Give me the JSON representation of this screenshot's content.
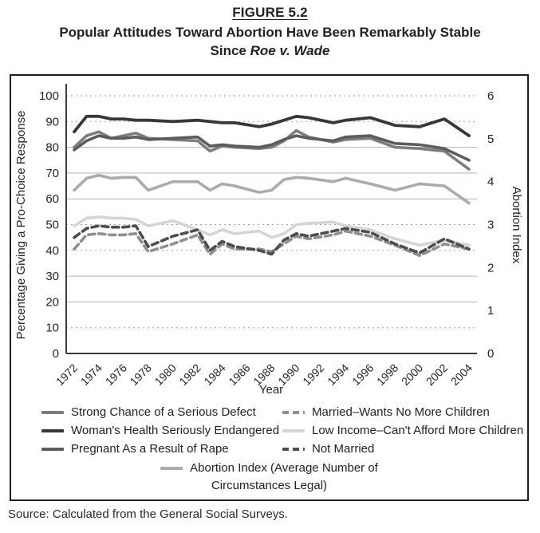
{
  "figure": {
    "label": "FIGURE 5.2",
    "title_line1": "Popular Attitudes Toward Abortion Have Been Remarkably Stable",
    "title_line2_prefix": "Since ",
    "title_line2_italic": "Roe v. Wade",
    "source": "Source: Calculated from the General Social Surveys."
  },
  "chart_data": {
    "type": "line",
    "x": [
      1972,
      1973,
      1974,
      1975,
      1976,
      1977,
      1978,
      1980,
      1982,
      1983,
      1984,
      1985,
      1987,
      1988,
      1989,
      1990,
      1991,
      1993,
      1994,
      1996,
      1998,
      2000,
      2002,
      2004
    ],
    "x_ticks": [
      "1972",
      "1974",
      "1976",
      "1978",
      "1980",
      "1982",
      "1984",
      "1986",
      "1988",
      "1990",
      "1992",
      "1994",
      "1996",
      "1998",
      "2000",
      "2002",
      "2004"
    ],
    "xlabel": "Year",
    "ylabel_left": "Percentage Giving a Pro-Choice Response",
    "ylabel_right": "Abortion Index",
    "ylim_left": [
      0,
      100
    ],
    "ylim_right": [
      0,
      6
    ],
    "grid": true,
    "y_ticks_left": [
      {
        "v": 0,
        "label": "0",
        "grid": "none"
      },
      {
        "v": 10,
        "label": "10",
        "grid": "dotted"
      },
      {
        "v": 20,
        "label": "20",
        "grid": "solid"
      },
      {
        "v": 30,
        "label": "30",
        "grid": "solid"
      },
      {
        "v": 40,
        "label": "40",
        "grid": "dotted"
      },
      {
        "v": 50,
        "label": "50",
        "grid": "dotted"
      },
      {
        "v": 60,
        "label": "60",
        "grid": "solid"
      },
      {
        "v": 70,
        "label": "70",
        "grid": "solid"
      },
      {
        "v": 80,
        "label": "80",
        "grid": "solid"
      },
      {
        "v": 90,
        "label": "90",
        "grid": "dotted"
      },
      {
        "v": 100,
        "label": "100",
        "grid": "dotted"
      }
    ],
    "y_ticks_right": [
      0,
      1,
      2,
      3,
      4,
      5,
      6
    ],
    "series": [
      {
        "name": "Strong Chance of a Serious Defect",
        "axis": "left",
        "color": "#7d7d7d",
        "dash": null,
        "width": 3.6,
        "z": 5,
        "values": [
          80,
          84.5,
          86,
          83.5,
          84.5,
          85.5,
          83.5,
          83,
          82.5,
          78.5,
          80.5,
          80,
          79.5,
          80,
          82.5,
          86.5,
          84,
          82,
          83,
          83.5,
          80,
          79.5,
          78.5,
          71.5
        ]
      },
      {
        "name": "Woman's Health Seriously Endangered",
        "axis": "left",
        "color": "#383838",
        "dash": null,
        "width": 3.8,
        "z": 7,
        "values": [
          86,
          92,
          92,
          91,
          91,
          90.5,
          90.5,
          90,
          90.5,
          90,
          89.5,
          89.5,
          88,
          89,
          90.5,
          92,
          91.5,
          89.5,
          90.5,
          91.5,
          88.5,
          88,
          91,
          84.5
        ]
      },
      {
        "name": "Pregnant As a Result of Rape",
        "axis": "left",
        "color": "#5c5c5c",
        "dash": null,
        "width": 3.6,
        "z": 6,
        "values": [
          79,
          82.5,
          84.5,
          83.5,
          83.5,
          84,
          83,
          83.5,
          84,
          80.5,
          81,
          80.5,
          80,
          81,
          83,
          84.5,
          83.5,
          82.5,
          84,
          84.5,
          81.5,
          81,
          79.5,
          75
        ]
      },
      {
        "name": "Married–Wants No More Children",
        "axis": "left",
        "color": "#8f8f8f",
        "dash": "8 5",
        "width": 3.6,
        "z": 3,
        "values": [
          40.5,
          46,
          46.5,
          46,
          46,
          46.5,
          39.5,
          42.5,
          46,
          38.5,
          42.5,
          40.5,
          40.5,
          39.5,
          42.5,
          45.5,
          44.5,
          46,
          47.5,
          45.5,
          42,
          38,
          42.5,
          40.5
        ]
      },
      {
        "name": "Low Income–Can't Afford More Children",
        "axis": "left",
        "color": "#d5d5d5",
        "dash": null,
        "width": 3.6,
        "z": 1,
        "values": [
          49.5,
          52.5,
          53,
          52.5,
          52.5,
          52,
          49.5,
          51.5,
          48,
          46,
          48,
          46.5,
          47.5,
          45,
          46.5,
          50,
          50.5,
          51,
          49.5,
          48,
          44.5,
          42,
          44,
          42
        ]
      },
      {
        "name": "Not Married",
        "axis": "left",
        "color": "#4d4d4d",
        "dash": "8 5",
        "width": 3.6,
        "z": 4,
        "values": [
          45,
          48.5,
          49.5,
          49,
          49,
          49.5,
          41.5,
          45.5,
          48,
          40,
          43.5,
          41.5,
          40,
          38.5,
          44,
          46.5,
          45.5,
          47.5,
          48.5,
          47,
          42.5,
          39,
          44.5,
          40.5
        ]
      },
      {
        "name": "Abortion Index (Average Number of Circumstances Legal)",
        "axis": "right",
        "color": "#ababab",
        "dash": null,
        "width": 3.6,
        "z": 2,
        "values": [
          3.8,
          4.08,
          4.15,
          4.08,
          4.1,
          4.1,
          3.8,
          4.0,
          4.0,
          3.8,
          3.95,
          3.9,
          3.75,
          3.8,
          4.05,
          4.1,
          4.08,
          4.0,
          4.08,
          3.95,
          3.8,
          3.95,
          3.9,
          3.5
        ]
      }
    ],
    "legend": {
      "left": [
        0,
        1,
        2
      ],
      "right": [
        3,
        4,
        5
      ],
      "center": 6,
      "center_lines": [
        "Abortion Index (Average Number of",
        "Circumstances Legal)"
      ],
      "legend_position": "bottom"
    }
  }
}
